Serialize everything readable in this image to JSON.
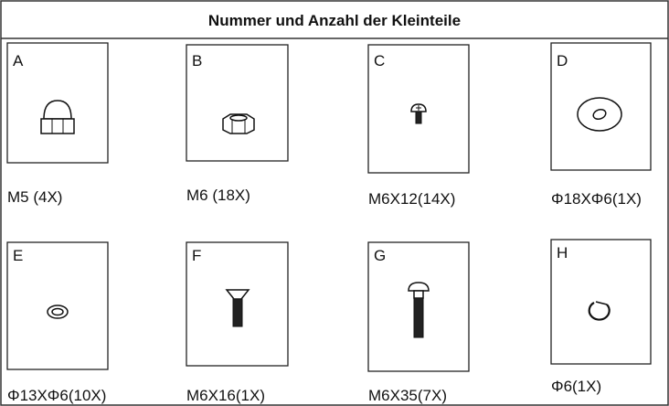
{
  "header": {
    "title": "Nummer und Anzahl der Kleinteile"
  },
  "parts": [
    {
      "letter": "A",
      "label": "M5 (4X)"
    },
    {
      "letter": "B",
      "label": "M6 (18X)"
    },
    {
      "letter": "C",
      "label": "M6X12(14X)"
    },
    {
      "letter": "D",
      "label": "Φ18XΦ6(1X)"
    },
    {
      "letter": "E",
      "label": "Φ13XΦ6(10X)"
    },
    {
      "letter": "F",
      "label": "M6X16(1X)"
    },
    {
      "letter": "G",
      "label": "M6X35(7X)"
    },
    {
      "letter": "H",
      "label": "Φ6(1X)"
    }
  ]
}
